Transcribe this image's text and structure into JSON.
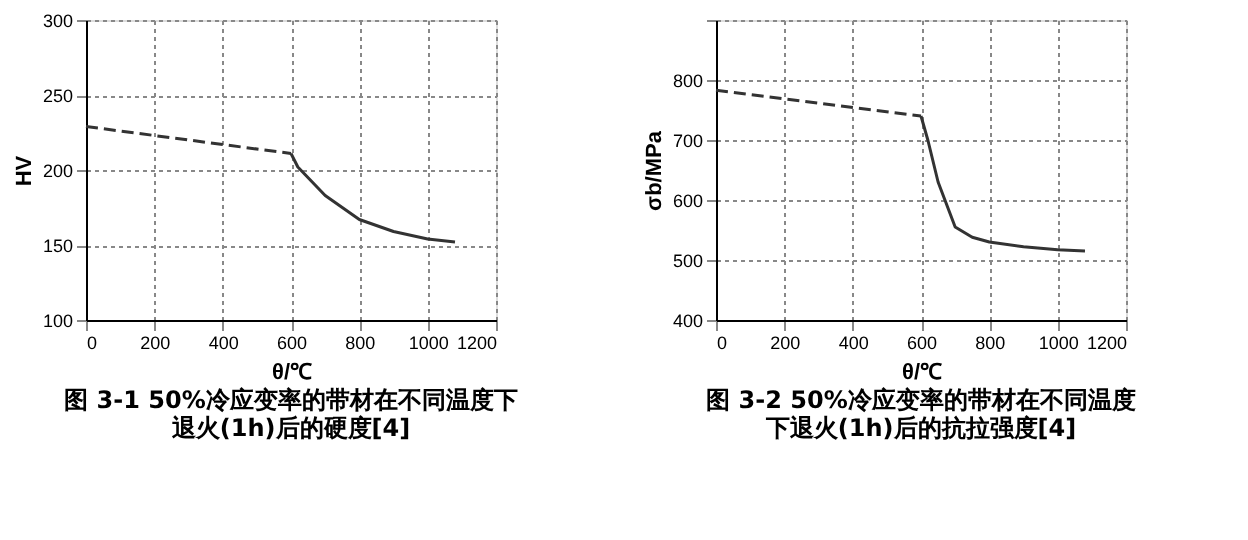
{
  "chart_data": [
    {
      "type": "line",
      "title": [
        "图 3-1 50%冷应变率的带材在不同温度下",
        "退火(1h)后的硬度[4]"
      ],
      "xlabel": "θ/℃",
      "ylabel": "HV",
      "xlim": [
        0,
        1200
      ],
      "xticks": [
        0,
        200,
        400,
        600,
        800,
        1000,
        1200
      ],
      "ylim": [
        100,
        300
      ],
      "yticks": [
        100,
        150,
        200,
        250,
        300
      ],
      "grid": true,
      "marker": "none",
      "series": [
        {
          "color": "#333333",
          "line_style": "dashed",
          "x": [
            0,
            600
          ],
          "values": [
            229,
            211
          ]
        },
        {
          "color": "#333333",
          "line_style": "solid",
          "x": [
            600,
            620,
            700,
            800,
            900,
            1000,
            1080
          ],
          "values": [
            211,
            202,
            183,
            167,
            159,
            154,
            152
          ]
        }
      ]
    },
    {
      "type": "line",
      "title": [
        "图 3-2 50%冷应变率的带材在不同温度",
        "下退火(1h)后的抗拉强度[4]"
      ],
      "xlabel": "θ/℃",
      "ylabel": "σb/MPa",
      "xlim": [
        0,
        1200
      ],
      "xticks": [
        0,
        200,
        400,
        600,
        800,
        1000,
        1200
      ],
      "ylim": [
        400,
        900
      ],
      "yticks": [
        400,
        500,
        600,
        700,
        800,
        {
          "value": 900,
          "label": null
        }
      ],
      "grid": true,
      "marker": "none",
      "series": [
        {
          "color": "#333333",
          "line_style": "dashed",
          "x": [
            0,
            600
          ],
          "values": [
            783,
            740
          ]
        },
        {
          "color": "#333333",
          "line_style": "solid",
          "x": [
            600,
            620,
            650,
            700,
            750,
            800,
            900,
            1000,
            1080
          ],
          "values": [
            740,
            700,
            630,
            555,
            538,
            530,
            522,
            517,
            515
          ]
        }
      ]
    }
  ]
}
